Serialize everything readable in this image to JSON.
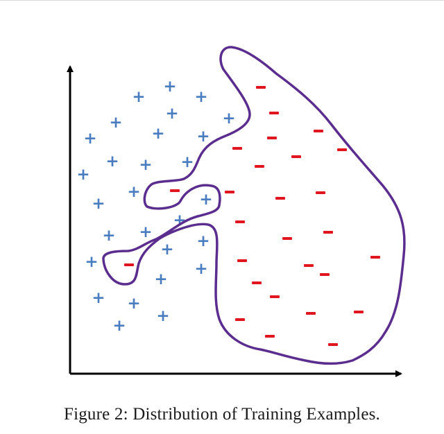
{
  "caption": "Figure 2: Distribution of Training Examples.",
  "colors": {
    "positive": "#4a7cc0",
    "negative": "#e0151f",
    "boundary": "#5b2d8e",
    "axis": "#000000"
  },
  "glyphs": {
    "positive": "+",
    "negative": "-"
  },
  "positive_examples": [
    [
      245,
      125
    ],
    [
      200,
      140
    ],
    [
      290,
      140
    ],
    [
      248,
      164
    ],
    [
      167,
      177
    ],
    [
      330,
      171
    ],
    [
      130,
      200
    ],
    [
      228,
      193
    ],
    [
      293,
      197
    ],
    [
      162,
      233
    ],
    [
      210,
      238
    ],
    [
      270,
      234
    ],
    [
      120,
      252
    ],
    [
      193,
      277
    ],
    [
      142,
      294
    ],
    [
      297,
      288
    ],
    [
      259,
      318
    ],
    [
      157,
      340
    ],
    [
      210,
      335
    ],
    [
      241,
      360
    ],
    [
      293,
      348
    ],
    [
      132,
      378
    ],
    [
      232,
      403
    ],
    [
      290,
      388
    ],
    [
      142,
      430
    ],
    [
      193,
      438
    ],
    [
      235,
      456
    ],
    [
      172,
      470
    ]
  ],
  "negative_examples": [
    [
      376,
      126
    ],
    [
      395,
      163
    ],
    [
      459,
      189
    ],
    [
      342,
      214
    ],
    [
      392,
      199
    ],
    [
      493,
      216
    ],
    [
      427,
      226
    ],
    [
      374,
      240
    ],
    [
      252,
      275
    ],
    [
      331,
      277
    ],
    [
      404,
      286
    ],
    [
      462,
      278
    ],
    [
      346,
      320
    ],
    [
      473,
      335
    ],
    [
      414,
      344
    ],
    [
      186,
      382
    ],
    [
      349,
      376
    ],
    [
      445,
      383
    ],
    [
      468,
      396
    ],
    [
      541,
      371
    ],
    [
      370,
      408
    ],
    [
      396,
      428
    ],
    [
      448,
      452
    ],
    [
      517,
      450
    ],
    [
      346,
      461
    ],
    [
      389,
      485
    ],
    [
      480,
      497
    ]
  ]
}
